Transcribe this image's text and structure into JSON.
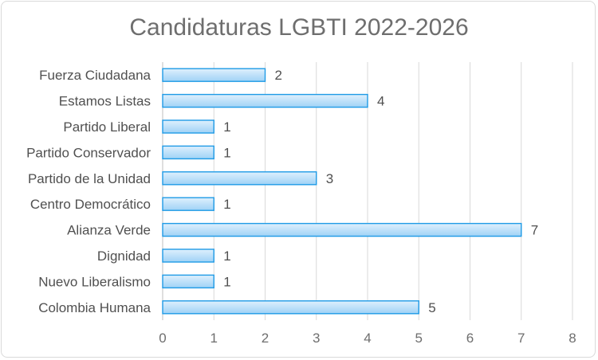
{
  "chart_data": {
    "type": "bar",
    "orientation": "horizontal",
    "title": "Candidaturas LGBTI 2022-2026",
    "categories": [
      "Fuerza Ciudadana",
      "Estamos Listas",
      "Partido Liberal",
      "Partido Conservador",
      "Partido de la Unidad",
      "Centro Democrático",
      "Alianza Verde",
      "Dignidad",
      "Nuevo Liberalismo",
      "Colombia Humana"
    ],
    "values": [
      2,
      4,
      1,
      1,
      3,
      1,
      7,
      1,
      1,
      5
    ],
    "xlim": [
      0,
      8
    ],
    "xticks": [
      0,
      1,
      2,
      3,
      4,
      5,
      6,
      7,
      8
    ],
    "xlabel": "",
    "ylabel": "",
    "grid": true,
    "data_labels": true,
    "colors": {
      "bar_fill_top": "#dff0fd",
      "bar_fill_bottom": "#9fd2f6",
      "bar_stroke": "#1f9be6",
      "grid": "#d9d9d9",
      "axis": "#bfbfbf"
    }
  }
}
